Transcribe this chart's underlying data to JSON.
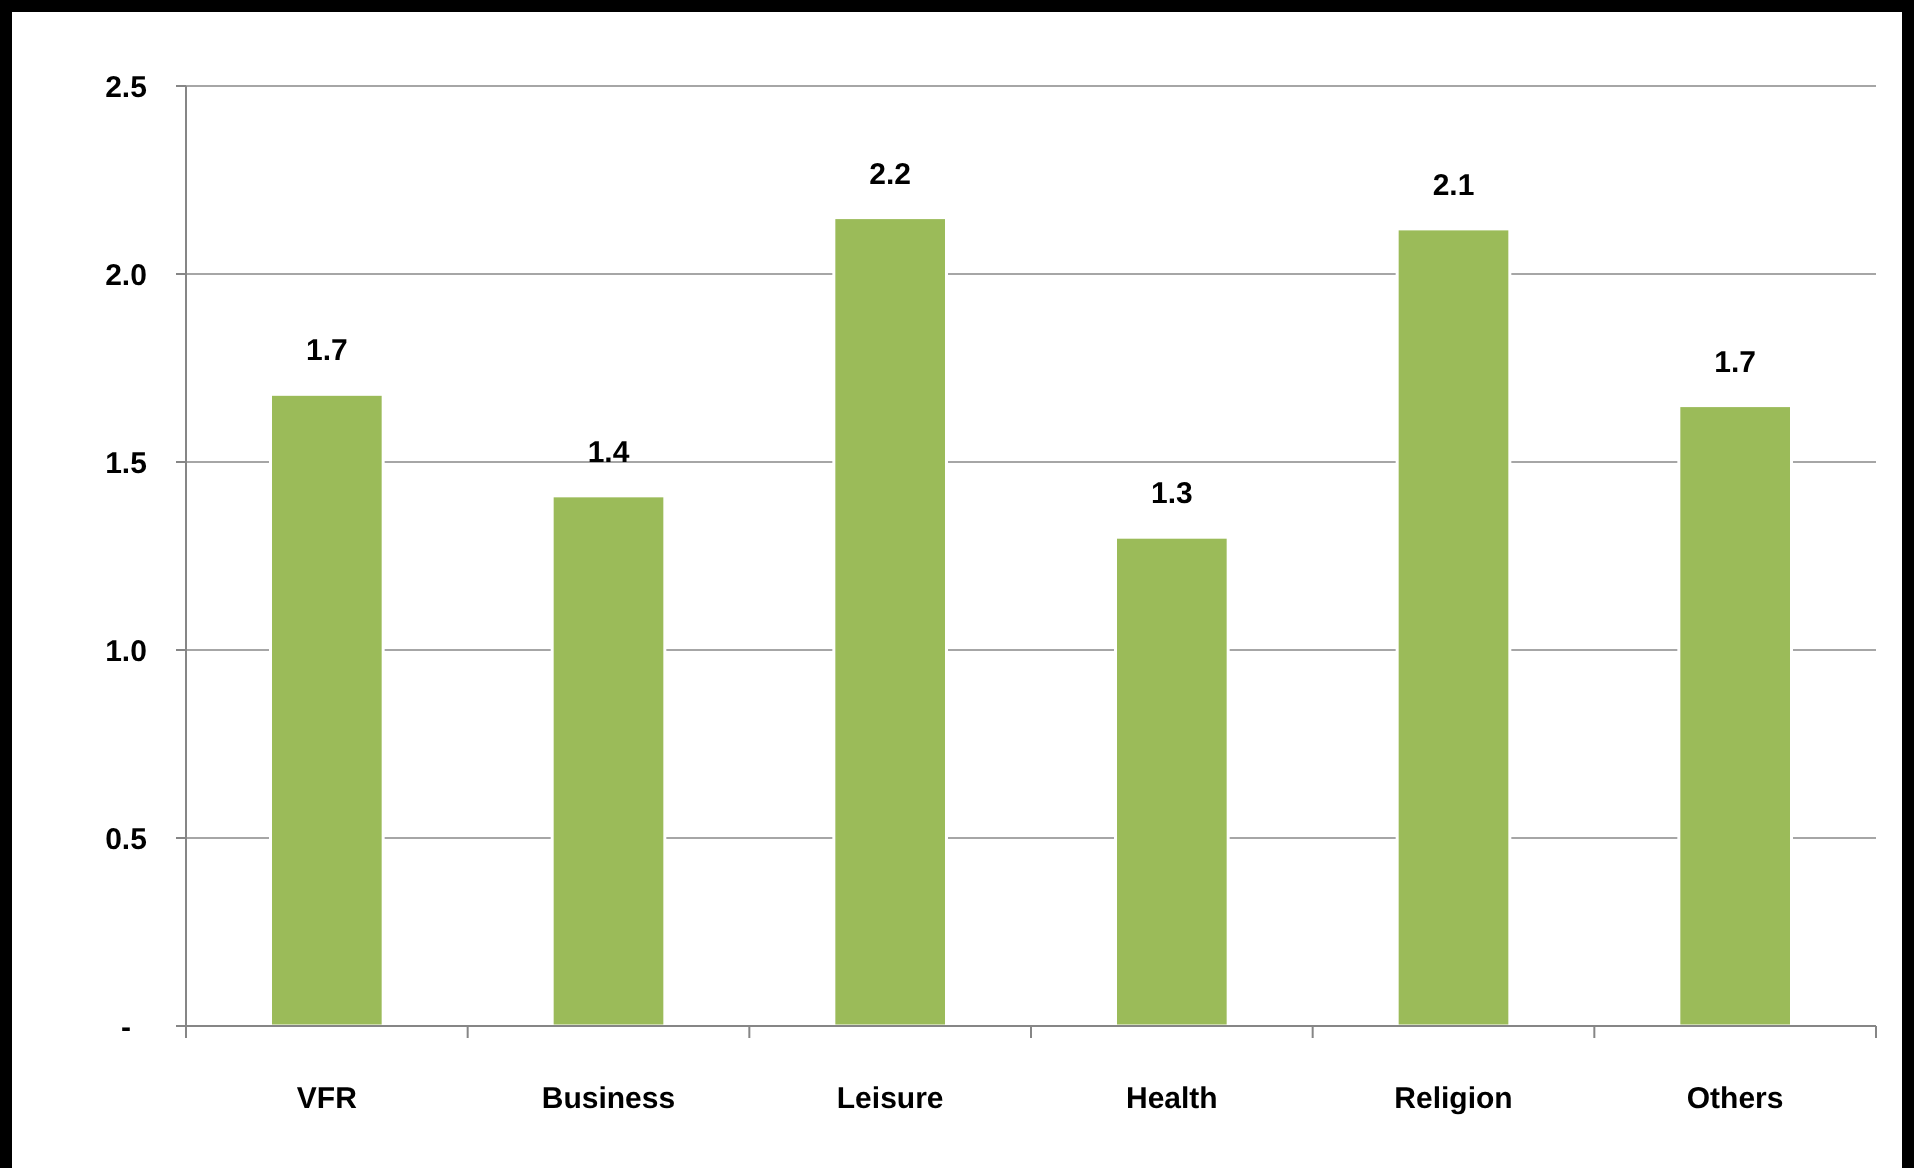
{
  "chart_data": {
    "type": "bar",
    "categories": [
      "VFR",
      "Business",
      "Leisure",
      "Health",
      "Religion",
      "Others"
    ],
    "values": [
      1.68,
      1.41,
      2.15,
      1.3,
      2.12,
      1.65
    ],
    "value_labels": [
      "1.7",
      "1.4",
      "2.2",
      "1.3",
      "2.1",
      "1.7"
    ],
    "color": "#9bbb59",
    "ylim": [
      0,
      2.5
    ],
    "yticks": [
      {
        "value": 0,
        "label": "-"
      },
      {
        "value": 0.5,
        "label": "0.5"
      },
      {
        "value": 1,
        "label": "1.0"
      },
      {
        "value": 1.5,
        "label": "1.5"
      },
      {
        "value": 2,
        "label": "2.0"
      },
      {
        "value": 2.5,
        "label": "2.5"
      }
    ],
    "grid": "y"
  }
}
